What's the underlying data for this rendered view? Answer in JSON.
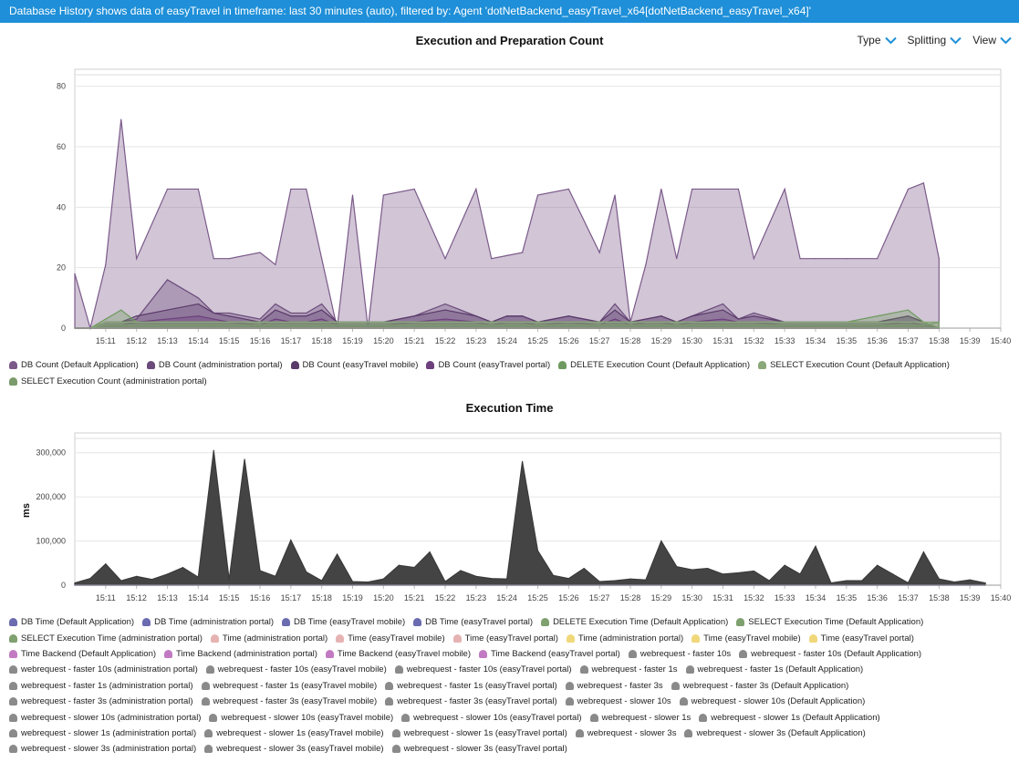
{
  "header": {
    "text": "Database History shows data of easyTravel in timeframe: last 30 minutes (auto), filtered by: Agent 'dotNetBackend_easyTravel_x64[dotNetBackend_easyTravel_x64]'"
  },
  "toolbar": {
    "type_label": "Type",
    "splitting_label": "Splitting",
    "view_label": "View",
    "accent": "#1e8fd8"
  },
  "chart_data": [
    {
      "type": "area",
      "title": "Execution and Preparation Count",
      "xlabel": "",
      "ylabel": "",
      "ylim": [
        0,
        82
      ],
      "y_ticks": [
        "0",
        "20",
        "40",
        "60",
        "80"
      ],
      "x_ticks": [
        "15:11",
        "15:12",
        "15:13",
        "15:14",
        "15:15",
        "15:16",
        "15:17",
        "15:18",
        "15:19",
        "15:20",
        "15:21",
        "15:22",
        "15:23",
        "15:24",
        "15:25",
        "15:26",
        "15:27",
        "15:28",
        "15:29",
        "15:30",
        "15:31",
        "15:32",
        "15:33",
        "15:34",
        "15:35",
        "15:36",
        "15:37",
        "15:38",
        "15:39",
        "15:40"
      ],
      "grid": true,
      "legend_placement": "bottom",
      "x": [
        "15:10",
        "15:10.5",
        "15:11",
        "15:11.5",
        "15:12",
        "15:13",
        "15:14",
        "15:14.5",
        "15:15",
        "15:16",
        "15:16.5",
        "15:17",
        "15:17.5",
        "15:18",
        "15:18.5",
        "15:19",
        "15:19.5",
        "15:20",
        "15:21",
        "15:22",
        "15:23",
        "15:23.5",
        "15:24",
        "15:24.5",
        "15:25",
        "15:26",
        "15:27",
        "15:27.5",
        "15:28",
        "15:28.5",
        "15:29",
        "15:29.5",
        "15:30",
        "15:31",
        "15:31.5",
        "15:32",
        "15:33",
        "15:33.5",
        "15:34",
        "15:35",
        "15:36",
        "15:37",
        "15:37.5",
        "15:38"
      ],
      "series": [
        {
          "name": "DB Count (Default Application)",
          "color": "#7b5a8a",
          "values": [
            18,
            0,
            21,
            69,
            23,
            46,
            46,
            23,
            23,
            25,
            21,
            46,
            46,
            23,
            0,
            44,
            0,
            44,
            46,
            23,
            46,
            23,
            24,
            25,
            44,
            46,
            25,
            44,
            2,
            21,
            46,
            23,
            46,
            46,
            46,
            23,
            46,
            23,
            23,
            23,
            23,
            46,
            48,
            23
          ]
        },
        {
          "name": "DB Count (administration portal)",
          "color": "#6a4a7a",
          "values": [
            0,
            0,
            2,
            2,
            3,
            16,
            10,
            5,
            5,
            3,
            8,
            5,
            5,
            8,
            2,
            2,
            2,
            2,
            4,
            8,
            4,
            2,
            4,
            4,
            2,
            4,
            2,
            8,
            2,
            3,
            4,
            2,
            4,
            8,
            3,
            5,
            2,
            2,
            2,
            2,
            2,
            4,
            2,
            0
          ]
        },
        {
          "name": "DB Count (easyTravel mobile)",
          "color": "#5a3a6a",
          "values": [
            0,
            0,
            2,
            2,
            4,
            6,
            8,
            5,
            4,
            2,
            6,
            4,
            4,
            6,
            2,
            2,
            2,
            2,
            4,
            6,
            4,
            2,
            4,
            4,
            2,
            4,
            2,
            6,
            2,
            3,
            4,
            2,
            4,
            6,
            3,
            4,
            2,
            2,
            2,
            2,
            2,
            4,
            2,
            0
          ]
        },
        {
          "name": "DB Count (easyTravel portal)",
          "color": "#6d3f7d",
          "values": [
            0,
            0,
            1,
            1,
            2,
            3,
            4,
            3,
            2,
            1,
            3,
            2,
            2,
            3,
            1,
            1,
            1,
            1,
            2,
            3,
            2,
            1,
            2,
            2,
            1,
            2,
            1,
            3,
            1,
            2,
            2,
            1,
            2,
            3,
            2,
            2,
            1,
            1,
            1,
            1,
            1,
            2,
            1,
            0
          ]
        },
        {
          "name": "DELETE Execution Count (Default Application)",
          "color": "#6f9a5f",
          "values": [
            0,
            0,
            3,
            6,
            2,
            2,
            2,
            2,
            2,
            2,
            2,
            2,
            2,
            2,
            2,
            2,
            2,
            2,
            2,
            2,
            2,
            2,
            2,
            2,
            2,
            2,
            2,
            2,
            2,
            2,
            2,
            2,
            2,
            2,
            2,
            2,
            2,
            2,
            2,
            2,
            4,
            6,
            2,
            0
          ]
        },
        {
          "name": "SELECT Execution Count (Default Application)",
          "color": "#8aa878",
          "values": [
            0,
            0,
            2,
            2,
            2,
            2,
            2,
            2,
            2,
            2,
            2,
            2,
            2,
            2,
            2,
            2,
            2,
            2,
            2,
            2,
            2,
            2,
            2,
            2,
            2,
            2,
            2,
            2,
            2,
            2,
            2,
            2,
            2,
            2,
            2,
            2,
            2,
            2,
            2,
            2,
            2,
            2,
            2,
            2
          ]
        },
        {
          "name": "SELECT Execution Count (administration portal)",
          "color": "#7a9c6c",
          "values": [
            0,
            0,
            1,
            1,
            1,
            1,
            1,
            1,
            1,
            1,
            1,
            1,
            1,
            1,
            1,
            1,
            1,
            1,
            1,
            1,
            1,
            1,
            1,
            1,
            1,
            1,
            1,
            1,
            1,
            1,
            1,
            1,
            1,
            1,
            1,
            1,
            1,
            1,
            1,
            1,
            1,
            1,
            1,
            2
          ]
        }
      ]
    },
    {
      "type": "area",
      "title": "Execution Time",
      "xlabel": "",
      "ylabel": "ms",
      "ylim": [
        0,
        320000
      ],
      "y_ticks": [
        "0",
        "100,000",
        "200,000",
        "300,000"
      ],
      "x_ticks": [
        "15:11",
        "15:12",
        "15:13",
        "15:14",
        "15:15",
        "15:16",
        "15:17",
        "15:18",
        "15:19",
        "15:20",
        "15:21",
        "15:22",
        "15:23",
        "15:24",
        "15:25",
        "15:26",
        "15:27",
        "15:28",
        "15:29",
        "15:30",
        "15:31",
        "15:32",
        "15:33",
        "15:34",
        "15:35",
        "15:36",
        "15:37",
        "15:38",
        "15:39",
        "15:40"
      ],
      "grid": true,
      "legend_placement": "bottom",
      "x": [
        "15:10",
        "15:10.5",
        "15:11",
        "15:11.5",
        "15:12",
        "15:12.5",
        "15:13",
        "15:13.5",
        "15:14",
        "15:14.5",
        "15:15",
        "15:15.5",
        "15:16",
        "15:16.5",
        "15:17",
        "15:17.5",
        "15:18",
        "15:18.5",
        "15:19",
        "15:19.5",
        "15:20",
        "15:20.5",
        "15:21",
        "15:21.5",
        "15:22",
        "15:22.5",
        "15:23",
        "15:23.5",
        "15:24",
        "15:24.5",
        "15:25",
        "15:25.5",
        "15:26",
        "15:26.5",
        "15:27",
        "15:27.5",
        "15:28",
        "15:28.5",
        "15:29",
        "15:29.5",
        "15:30",
        "15:30.5",
        "15:31",
        "15:31.5",
        "15:32",
        "15:32.5",
        "15:33",
        "15:33.5",
        "15:34",
        "15:34.5",
        "15:35",
        "15:35.5",
        "15:36",
        "15:36.5",
        "15:37",
        "15:37.5",
        "15:38",
        "15:38.5",
        "15:39",
        "15:39.5"
      ],
      "series": [
        {
          "name": "webrequest - faster 10s",
          "color": "#3a3a3a",
          "values": [
            5000,
            15000,
            48000,
            10000,
            20000,
            13000,
            25000,
            40000,
            18000,
            305000,
            12000,
            285000,
            33000,
            20000,
            102000,
            30000,
            10000,
            70000,
            8000,
            7000,
            14000,
            45000,
            40000,
            75000,
            8000,
            33000,
            20000,
            15000,
            14000,
            280000,
            78000,
            22000,
            15000,
            38000,
            8000,
            10000,
            14000,
            12000,
            100000,
            42000,
            35000,
            38000,
            25000,
            28000,
            32000,
            10000,
            45000,
            25000,
            88000,
            5000,
            10000,
            10000,
            45000,
            25000,
            5000,
            75000,
            14000,
            7000,
            12000,
            5000
          ]
        },
        {
          "name": "DB Time (Default Application)",
          "color": "#5a5aa8",
          "values": [
            0,
            0,
            0,
            0,
            0,
            0,
            0,
            0,
            0,
            0,
            0,
            0,
            0,
            0,
            0,
            0,
            0,
            0,
            0,
            0,
            0,
            0,
            0,
            0,
            0,
            0,
            0,
            0,
            0,
            0,
            0,
            0,
            0,
            0,
            0,
            0,
            0,
            0,
            0,
            0,
            0,
            0,
            0,
            0,
            0,
            0,
            0,
            0,
            0,
            0,
            0,
            0,
            0,
            0,
            0,
            0,
            0,
            0,
            0,
            0
          ]
        }
      ]
    }
  ],
  "legend1": [
    [
      {
        "label": "DB Count (Default Application)",
        "color": "#7b5a8a"
      },
      {
        "label": "DB Count (administration portal)",
        "color": "#6a4a7a"
      },
      {
        "label": "DB Count (easyTravel mobile)",
        "color": "#5a3a6a"
      },
      {
        "label": "DB Count (easyTravel portal)",
        "color": "#6d3f7d"
      },
      {
        "label": "DELETE Execution Count (Default Application)",
        "color": "#6f9a5f"
      },
      {
        "label": "SELECT Execution Count (Default Application)",
        "color": "#8aa878"
      }
    ],
    [
      {
        "label": "SELECT Execution Count (administration portal)",
        "color": "#7a9c6c"
      }
    ]
  ],
  "legend2": [
    [
      {
        "label": "DB Time (Default Application)",
        "color": "#6b6bb0"
      },
      {
        "label": "DB Time (administration portal)",
        "color": "#6b6bb0"
      },
      {
        "label": "DB Time (easyTravel mobile)",
        "color": "#6b6bb0"
      },
      {
        "label": "DB Time (easyTravel portal)",
        "color": "#6b6bb0"
      },
      {
        "label": "DELETE Execution Time (Default Application)",
        "color": "#7fa06f"
      },
      {
        "label": "SELECT Execution Time (Default Application)",
        "color": "#7fa06f"
      }
    ],
    [
      {
        "label": "SELECT Execution Time (administration portal)",
        "color": "#7fa06f"
      },
      {
        "label": "Time (administration portal)",
        "color": "#e6b3b3"
      },
      {
        "label": "Time (easyTravel mobile)",
        "color": "#e6b3b3"
      },
      {
        "label": "Time (easyTravel portal)",
        "color": "#e6b3b3"
      },
      {
        "label": "Time (administration portal)",
        "color": "#f0d87a"
      },
      {
        "label": "Time (easyTravel mobile)",
        "color": "#f0d87a"
      },
      {
        "label": "Time (easyTravel portal)",
        "color": "#f0d87a"
      }
    ],
    [
      {
        "label": "Time Backend (Default Application)",
        "color": "#c27bc2"
      },
      {
        "label": "Time Backend (administration portal)",
        "color": "#c27bc2"
      },
      {
        "label": "Time Backend (easyTravel mobile)",
        "color": "#c27bc2"
      },
      {
        "label": "Time Backend (easyTravel portal)",
        "color": "#c27bc2"
      },
      {
        "label": "webrequest - faster 10s",
        "color": "#8a8a8a"
      },
      {
        "label": "webrequest - faster 10s (Default Application)",
        "color": "#8a8a8a"
      }
    ],
    [
      {
        "label": "webrequest - faster 10s (administration portal)",
        "color": "#8a8a8a"
      },
      {
        "label": "webrequest - faster 10s (easyTravel mobile)",
        "color": "#8a8a8a"
      },
      {
        "label": "webrequest - faster 10s (easyTravel portal)",
        "color": "#8a8a8a"
      },
      {
        "label": "webrequest - faster 1s",
        "color": "#8a8a8a"
      },
      {
        "label": "webrequest - faster 1s (Default Application)",
        "color": "#8a8a8a"
      }
    ],
    [
      {
        "label": "webrequest - faster 1s (administration portal)",
        "color": "#8a8a8a"
      },
      {
        "label": "webrequest - faster 1s (easyTravel mobile)",
        "color": "#8a8a8a"
      },
      {
        "label": "webrequest - faster 1s (easyTravel portal)",
        "color": "#8a8a8a"
      },
      {
        "label": "webrequest - faster 3s",
        "color": "#8a8a8a"
      },
      {
        "label": "webrequest - faster 3s (Default Application)",
        "color": "#8a8a8a"
      }
    ],
    [
      {
        "label": "webrequest - faster 3s (administration portal)",
        "color": "#8a8a8a"
      },
      {
        "label": "webrequest - faster 3s (easyTravel mobile)",
        "color": "#8a8a8a"
      },
      {
        "label": "webrequest - faster 3s (easyTravel portal)",
        "color": "#8a8a8a"
      },
      {
        "label": "webrequest - slower 10s",
        "color": "#8a8a8a"
      },
      {
        "label": "webrequest - slower 10s (Default Application)",
        "color": "#8a8a8a"
      }
    ],
    [
      {
        "label": "webrequest - slower 10s (administration portal)",
        "color": "#8a8a8a"
      },
      {
        "label": "webrequest - slower 10s (easyTravel mobile)",
        "color": "#8a8a8a"
      },
      {
        "label": "webrequest - slower 10s (easyTravel portal)",
        "color": "#8a8a8a"
      },
      {
        "label": "webrequest - slower 1s",
        "color": "#8a8a8a"
      },
      {
        "label": "webrequest - slower 1s (Default Application)",
        "color": "#8a8a8a"
      }
    ],
    [
      {
        "label": "webrequest - slower 1s (administration portal)",
        "color": "#8a8a8a"
      },
      {
        "label": "webrequest - slower 1s (easyTravel mobile)",
        "color": "#8a8a8a"
      },
      {
        "label": "webrequest - slower 1s (easyTravel portal)",
        "color": "#8a8a8a"
      },
      {
        "label": "webrequest - slower 3s",
        "color": "#8a8a8a"
      },
      {
        "label": "webrequest - slower 3s (Default Application)",
        "color": "#8a8a8a"
      }
    ],
    [
      {
        "label": "webrequest - slower 3s (administration portal)",
        "color": "#8a8a8a"
      },
      {
        "label": "webrequest - slower 3s (easyTravel mobile)",
        "color": "#8a8a8a"
      },
      {
        "label": "webrequest - slower 3s (easyTravel portal)",
        "color": "#8a8a8a"
      }
    ]
  ]
}
